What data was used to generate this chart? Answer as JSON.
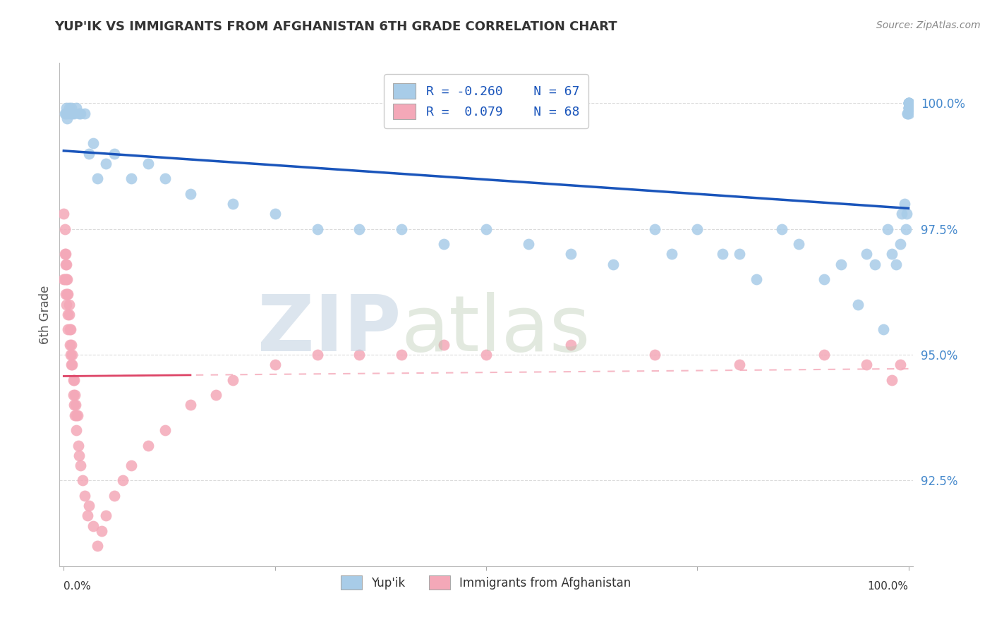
{
  "title": "YUP'IK VS IMMIGRANTS FROM AFGHANISTAN 6TH GRADE CORRELATION CHART",
  "source": "Source: ZipAtlas.com",
  "ylabel": "6th Grade",
  "ytick_labels": [
    "92.5%",
    "95.0%",
    "97.5%",
    "100.0%"
  ],
  "ytick_values": [
    0.925,
    0.95,
    0.975,
    1.0
  ],
  "xlim": [
    -0.005,
    1.005
  ],
  "ylim": [
    0.908,
    1.008
  ],
  "legend_blue_R": "R = -0.260",
  "legend_blue_N": "N = 67",
  "legend_pink_R": "R =  0.079",
  "legend_pink_N": "N = 68",
  "blue_scatter_x": [
    0.001,
    0.002,
    0.003,
    0.004,
    0.005,
    0.006,
    0.008,
    0.009,
    0.01,
    0.012,
    0.015,
    0.018,
    0.02,
    0.025,
    0.03,
    0.035,
    0.04,
    0.05,
    0.06,
    0.08,
    0.1,
    0.12,
    0.15,
    0.2,
    0.25,
    0.3,
    0.35,
    0.4,
    0.45,
    0.5,
    0.55,
    0.6,
    0.65,
    0.7,
    0.72,
    0.75,
    0.78,
    0.8,
    0.82,
    0.85,
    0.87,
    0.9,
    0.92,
    0.94,
    0.95,
    0.96,
    0.97,
    0.975,
    0.98,
    0.985,
    0.99,
    0.992,
    0.995,
    0.997,
    0.998,
    0.999,
    0.999,
    1.0,
    1.0,
    1.0,
    1.0,
    1.0,
    1.0,
    1.0,
    1.0,
    1.0,
    1.0
  ],
  "blue_scatter_y": [
    0.998,
    0.998,
    0.999,
    0.997,
    0.998,
    0.999,
    0.998,
    0.999,
    0.998,
    0.998,
    0.999,
    0.998,
    0.998,
    0.998,
    0.99,
    0.992,
    0.985,
    0.988,
    0.99,
    0.985,
    0.988,
    0.985,
    0.982,
    0.98,
    0.978,
    0.975,
    0.975,
    0.975,
    0.972,
    0.975,
    0.972,
    0.97,
    0.968,
    0.975,
    0.97,
    0.975,
    0.97,
    0.97,
    0.965,
    0.975,
    0.972,
    0.965,
    0.968,
    0.96,
    0.97,
    0.968,
    0.955,
    0.975,
    0.97,
    0.968,
    0.972,
    0.978,
    0.98,
    0.975,
    0.978,
    0.998,
    0.998,
    0.998,
    0.999,
    0.999,
    0.999,
    0.999,
    1.0,
    1.0,
    1.0,
    1.0,
    1.0
  ],
  "pink_scatter_x": [
    0.0,
    0.0,
    0.001,
    0.001,
    0.001,
    0.002,
    0.002,
    0.002,
    0.003,
    0.003,
    0.003,
    0.004,
    0.004,
    0.005,
    0.005,
    0.005,
    0.006,
    0.006,
    0.007,
    0.007,
    0.008,
    0.008,
    0.009,
    0.009,
    0.01,
    0.01,
    0.011,
    0.011,
    0.012,
    0.012,
    0.013,
    0.013,
    0.014,
    0.015,
    0.015,
    0.016,
    0.017,
    0.018,
    0.02,
    0.022,
    0.025,
    0.028,
    0.03,
    0.035,
    0.04,
    0.045,
    0.05,
    0.06,
    0.07,
    0.08,
    0.1,
    0.12,
    0.15,
    0.18,
    0.2,
    0.25,
    0.3,
    0.35,
    0.4,
    0.45,
    0.5,
    0.6,
    0.7,
    0.8,
    0.9,
    0.95,
    0.98,
    0.99
  ],
  "pink_scatter_y": [
    0.978,
    0.965,
    0.975,
    0.97,
    0.965,
    0.97,
    0.968,
    0.962,
    0.968,
    0.965,
    0.96,
    0.965,
    0.962,
    0.962,
    0.958,
    0.955,
    0.96,
    0.958,
    0.955,
    0.952,
    0.955,
    0.95,
    0.952,
    0.948,
    0.95,
    0.948,
    0.945,
    0.942,
    0.945,
    0.94,
    0.942,
    0.938,
    0.94,
    0.938,
    0.935,
    0.938,
    0.932,
    0.93,
    0.928,
    0.925,
    0.922,
    0.918,
    0.92,
    0.916,
    0.912,
    0.915,
    0.918,
    0.922,
    0.925,
    0.928,
    0.932,
    0.935,
    0.94,
    0.942,
    0.945,
    0.948,
    0.95,
    0.95,
    0.95,
    0.952,
    0.95,
    0.952,
    0.95,
    0.948,
    0.95,
    0.948,
    0.945,
    0.948
  ],
  "blue_color": "#a8cce8",
  "pink_color": "#f4a8b8",
  "blue_line_color": "#1a55bb",
  "pink_line_color": "#dd4466",
  "pink_dash_color": "#f4a8b8",
  "grid_color": "#cccccc",
  "watermark_ZIP_color": "#c0d0e0",
  "watermark_atlas_color": "#b8c8b0",
  "background_color": "#ffffff",
  "tick_label_color": "#4488cc",
  "axis_label_color": "#555555"
}
